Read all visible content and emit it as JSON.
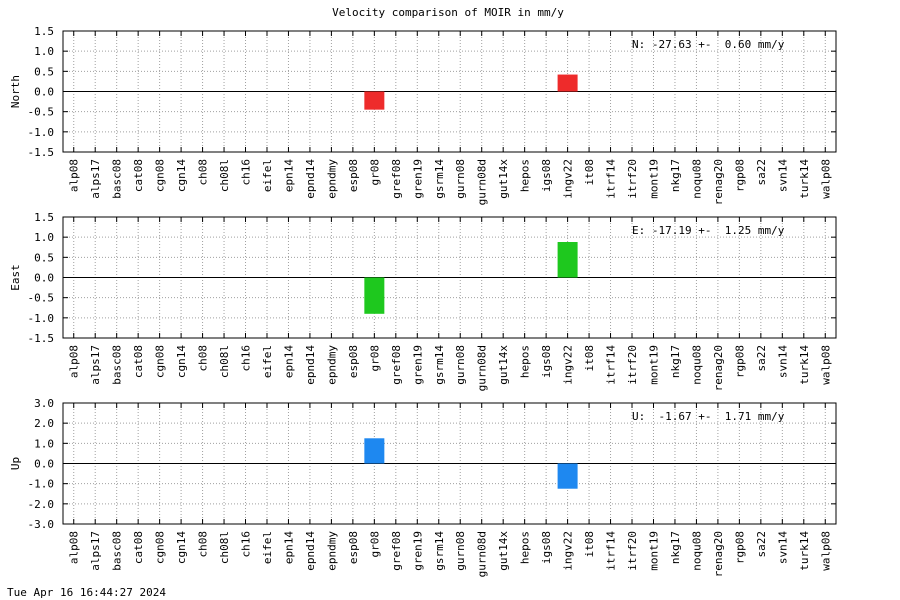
{
  "title": "Velocity comparison of MOIR in mm/y",
  "footer_timestamp": "Tue Apr 16 16:44:27 2024",
  "chart_data": {
    "type": "bar",
    "categories": [
      "alp08",
      "alps17",
      "basc08",
      "cat08",
      "cgn08",
      "cgn14",
      "ch08",
      "ch08l",
      "ch16",
      "eifel",
      "epn14",
      "epnd14",
      "epndmy",
      "esp08",
      "gr08",
      "gref08",
      "gren19",
      "gsrm14",
      "gurn08",
      "gurn08d",
      "gut14x",
      "hepos",
      "igs08",
      "ingv22",
      "it08",
      "itrf14",
      "itrf20",
      "mont19",
      "nkg17",
      "noqu08",
      "renag20",
      "rgp08",
      "sa22",
      "svn14",
      "turk14",
      "walp08"
    ],
    "panels": [
      {
        "ylabel": "North",
        "ylim": [
          -1.5,
          1.5
        ],
        "yticks": [
          -1.5,
          -1.0,
          -0.5,
          0.0,
          0.5,
          1.0,
          1.5
        ],
        "tick_labels": [
          "-1.5",
          "-1.0",
          "-0.5",
          "0.0",
          "0.5",
          "1.0",
          "1.5"
        ],
        "annotation": "N: -27.63 +-  0.60 mm/y",
        "color": "#ee2b2b",
        "values": {
          "gr08": -0.45,
          "ingv22": 0.42
        }
      },
      {
        "ylabel": "East",
        "ylim": [
          -1.5,
          1.5
        ],
        "yticks": [
          -1.5,
          -1.0,
          -0.5,
          0.0,
          0.5,
          1.0,
          1.5
        ],
        "tick_labels": [
          "-1.5",
          "-1.0",
          "-0.5",
          "0.0",
          "0.5",
          "1.0",
          "1.5"
        ],
        "annotation": "E: -17.19 +-  1.25 mm/y",
        "color": "#1ec81e",
        "values": {
          "gr08": -0.9,
          "ingv22": 0.88
        }
      },
      {
        "ylabel": "Up",
        "ylim": [
          -3.0,
          3.0
        ],
        "yticks": [
          -3.0,
          -2.0,
          -1.0,
          0.0,
          1.0,
          2.0,
          3.0
        ],
        "tick_labels": [
          "-3.0",
          "-2.0",
          "-1.0",
          "0.0",
          "1.0",
          "2.0",
          "3.0"
        ],
        "annotation": "U:  -1.67 +-  1.71 mm/y",
        "color": "#1e88f0",
        "values": {
          "gr08": 1.25,
          "ingv22": -1.25
        }
      }
    ],
    "grid": true
  }
}
